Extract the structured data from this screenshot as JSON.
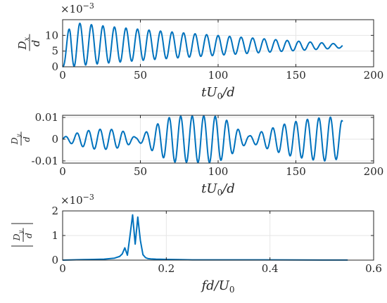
{
  "chart_data": [
    {
      "type": "line",
      "xlim": [
        0,
        200
      ],
      "ylim": [
        0,
        0.015
      ],
      "xticks": [
        "0",
        "50",
        "100",
        "150",
        "200"
      ],
      "yticks": [
        "0",
        "5",
        "10"
      ],
      "exponent_label": "×10",
      "exponent_power": "−3",
      "xlabel": {
        "t": "tU",
        "sub": "0",
        "tail": "/d"
      },
      "ylabel": {
        "num": "D",
        "sub": "x",
        "den": "d"
      },
      "grid": true,
      "color": "#0072BD",
      "signal": {
        "x_start": 0,
        "x_end": 180,
        "peak_x": 5,
        "peak_min": 0.0,
        "peak_max": 0.0143,
        "end_min": 0.006,
        "end_max": 0.0072,
        "frequency": 0.135,
        "amplitude_at_peak": 0.0072,
        "amplitude_at_end": 0.0006
      }
    },
    {
      "type": "line",
      "xlim": [
        0,
        200
      ],
      "ylim": [
        -0.011,
        0.011
      ],
      "xticks": [
        "0",
        "50",
        "100",
        "150",
        "200"
      ],
      "yticks": [
        "-0.01",
        "0",
        "0.01"
      ],
      "xlabel": {
        "t": "tU",
        "sub": "0",
        "tail": "/d"
      },
      "ylabel": {
        "num": "D",
        "sub": "y",
        "den": "d"
      },
      "grid": true,
      "color": "#0072BD",
      "signal": {
        "x_start": 0,
        "x_end": 180,
        "frequency": 0.135,
        "envelope": [
          [
            0,
            0.0008
          ],
          [
            10,
            0.003
          ],
          [
            20,
            0.0045
          ],
          [
            30,
            0.0047
          ],
          [
            40,
            0.0035
          ],
          [
            47,
            0.0008
          ],
          [
            52,
            0.0025
          ],
          [
            62,
            0.0075
          ],
          [
            70,
            0.0105
          ],
          [
            85,
            0.0107
          ],
          [
            97,
            0.0108
          ],
          [
            105,
            0.009
          ],
          [
            113,
            0.0045
          ],
          [
            120,
            0.0015
          ],
          [
            130,
            0.004
          ],
          [
            145,
            0.0075
          ],
          [
            160,
            0.0095
          ],
          [
            172,
            0.0102
          ],
          [
            180,
            0.0085
          ]
        ]
      }
    },
    {
      "type": "line",
      "xlim": [
        0,
        0.6
      ],
      "ylim": [
        0,
        0.002
      ],
      "xticks": [
        "0",
        "0.2",
        "0.4",
        "0.6"
      ],
      "yticks": [
        "0",
        "1",
        "2"
      ],
      "exponent_label": "×10",
      "exponent_power": "−3",
      "xlabel": {
        "t": "fd/U",
        "sub": "0",
        "tail": ""
      },
      "ylabel": {
        "num": "D",
        "sub": "y",
        "den": "d",
        "abs": true
      },
      "grid": true,
      "color": "#0072BD",
      "x": [
        0,
        0.02,
        0.04,
        0.06,
        0.08,
        0.1,
        0.11,
        0.115,
        0.12,
        0.125,
        0.13,
        0.135,
        0.14,
        0.145,
        0.15,
        0.155,
        0.16,
        0.165,
        0.17,
        0.18,
        0.2,
        0.25,
        0.3,
        0.4,
        0.5,
        0.55
      ],
      "y": [
        0,
        1e-05,
        2e-05,
        3e-05,
        4e-05,
        8e-05,
        0.00015,
        0.00025,
        0.0005,
        0.0002,
        0.001,
        0.00184,
        0.00065,
        0.00175,
        0.0008,
        0.00022,
        0.0001,
        6e-05,
        5e-05,
        4e-05,
        3e-05,
        1e-05,
        1e-05,
        1e-05,
        5e-06,
        5e-06
      ]
    }
  ]
}
